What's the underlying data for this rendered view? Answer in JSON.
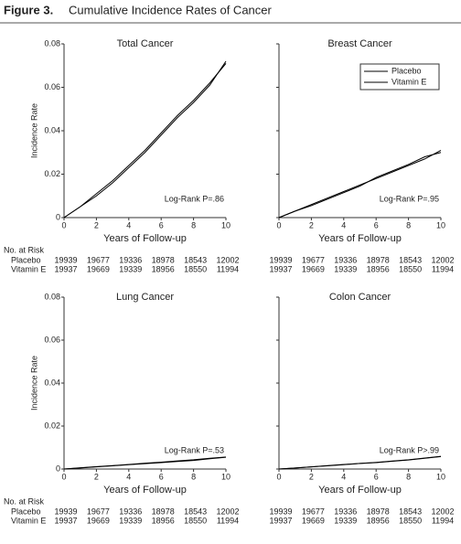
{
  "figure": {
    "label": "Figure 3.",
    "title": "Cumulative Incidence Rates of Cancer"
  },
  "at_risk": {
    "title": "No. at Risk",
    "groups": [
      "Placebo",
      "Vitamin E"
    ]
  },
  "chart_data": [
    {
      "type": "line",
      "title": "Total Cancer",
      "x": [
        0,
        1,
        2,
        3,
        4,
        5,
        6,
        7,
        8,
        9,
        10
      ],
      "series": [
        {
          "name": "Placebo",
          "color": "#000000",
          "values": [
            0,
            0.005,
            0.01,
            0.016,
            0.023,
            0.03,
            0.038,
            0.046,
            0.053,
            0.061,
            0.072
          ]
        },
        {
          "name": "Vitamin E",
          "color": "#000000",
          "values": [
            0,
            0.005,
            0.011,
            0.017,
            0.024,
            0.031,
            0.039,
            0.047,
            0.054,
            0.062,
            0.071
          ]
        }
      ],
      "xlabel": "Years of Follow-up",
      "ylabel": "Incidence Rate",
      "annotation": "Log-Rank P=.86",
      "xlim": [
        0,
        10
      ],
      "ylim": [
        0,
        0.08
      ],
      "xticks": [
        0,
        2,
        4,
        6,
        8,
        10
      ],
      "yticks": [
        0,
        0.02,
        0.04,
        0.06,
        0.08
      ],
      "at_risk": [
        [
          19939,
          19677,
          19336,
          18978,
          18543,
          12002
        ],
        [
          19937,
          19669,
          19339,
          18956,
          18550,
          11994
        ]
      ]
    },
    {
      "type": "line",
      "title": "Breast Cancer",
      "x": [
        0,
        1,
        2,
        3,
        4,
        5,
        6,
        7,
        8,
        9,
        10
      ],
      "series": [
        {
          "name": "Placebo",
          "color": "#000000",
          "values": [
            0,
            0.003,
            0.006,
            0.009,
            0.012,
            0.015,
            0.018,
            0.021,
            0.024,
            0.027,
            0.031
          ]
        },
        {
          "name": "Vitamin E",
          "color": "#000000",
          "values": [
            0,
            0.003,
            0.0055,
            0.0085,
            0.0115,
            0.0145,
            0.0185,
            0.0215,
            0.0245,
            0.028,
            0.03
          ]
        }
      ],
      "xlabel": "Years of Follow-up",
      "annotation": "Log-Rank P=.95",
      "legend": "upper right",
      "ytick_labels": false,
      "xlim": [
        0,
        10
      ],
      "ylim": [
        0,
        0.08
      ],
      "xticks": [
        0,
        2,
        4,
        6,
        8,
        10
      ],
      "yticks": [
        0,
        0.02,
        0.04,
        0.06,
        0.08
      ],
      "at_risk": [
        [
          19939,
          19677,
          19336,
          18978,
          18543,
          12002
        ],
        [
          19937,
          19669,
          19339,
          18956,
          18550,
          11994
        ]
      ]
    },
    {
      "type": "line",
      "title": "Lung Cancer",
      "x": [
        0,
        1,
        2,
        3,
        4,
        5,
        6,
        7,
        8,
        9,
        10
      ],
      "series": [
        {
          "name": "Placebo",
          "color": "#000000",
          "values": [
            0,
            0.0005,
            0.001,
            0.0015,
            0.002,
            0.0025,
            0.003,
            0.0035,
            0.004,
            0.0048,
            0.0055
          ]
        },
        {
          "name": "Vitamin E",
          "color": "#000000",
          "values": [
            0,
            0.0006,
            0.0011,
            0.0016,
            0.0021,
            0.0027,
            0.0032,
            0.0038,
            0.0043,
            0.005,
            0.0056
          ]
        }
      ],
      "xlabel": "Years of Follow-up",
      "ylabel": "Incidence Rate",
      "annotation": "Log-Rank P=.53",
      "xlim": [
        0,
        10
      ],
      "ylim": [
        0,
        0.08
      ],
      "xticks": [
        0,
        2,
        4,
        6,
        8,
        10
      ],
      "yticks": [
        0,
        0.02,
        0.04,
        0.06,
        0.08
      ],
      "at_risk": [
        [
          19939,
          19677,
          19336,
          18978,
          18543,
          12002
        ],
        [
          19937,
          19669,
          19339,
          18956,
          18550,
          11994
        ]
      ]
    },
    {
      "type": "line",
      "title": "Colon Cancer",
      "x": [
        0,
        1,
        2,
        3,
        4,
        5,
        6,
        7,
        8,
        9,
        10
      ],
      "series": [
        {
          "name": "Placebo",
          "color": "#000000",
          "values": [
            0,
            0.0005,
            0.001,
            0.0015,
            0.002,
            0.0026,
            0.003,
            0.0036,
            0.0042,
            0.005,
            0.0058
          ]
        },
        {
          "name": "Vitamin E",
          "color": "#000000",
          "values": [
            0,
            0.0005,
            0.001,
            0.0016,
            0.0021,
            0.0026,
            0.0031,
            0.0037,
            0.0043,
            0.0051,
            0.0059
          ]
        }
      ],
      "xlabel": "Years of Follow-up",
      "annotation": "Log-Rank P>.99",
      "ytick_labels": false,
      "xlim": [
        0,
        10
      ],
      "ylim": [
        0,
        0.08
      ],
      "xticks": [
        0,
        2,
        4,
        6,
        8,
        10
      ],
      "yticks": [
        0,
        0.02,
        0.04,
        0.06,
        0.08
      ],
      "at_risk": [
        [
          19939,
          19677,
          19336,
          18978,
          18543,
          12002
        ],
        [
          19937,
          19669,
          19339,
          18956,
          18550,
          11994
        ]
      ]
    }
  ]
}
